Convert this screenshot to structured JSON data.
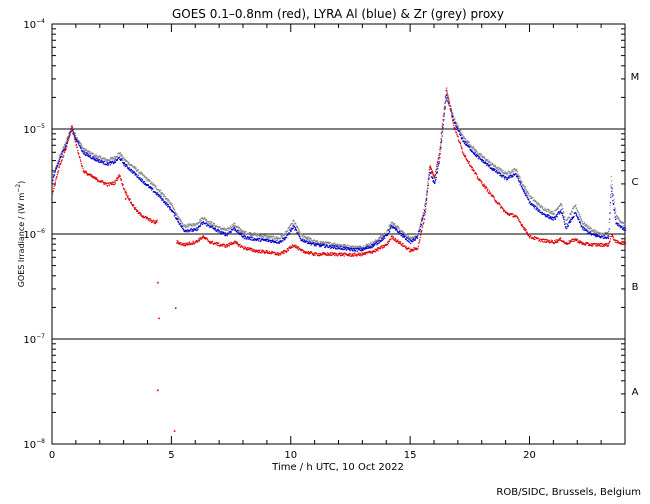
{
  "chart_data": {
    "type": "scatter",
    "title": "GOES 0.1–0.8nm (red), LYRA Al (blue) & Zr (grey) proxy",
    "xlabel": "Time / h UTC, 10 Oct 2022",
    "ylabel_main": "GOES Irradiance / (W m",
    "ylabel_exp": "−2",
    "ylabel_close": ")",
    "xlim": [
      0,
      24
    ],
    "ylim": [
      1e-08,
      0.0001
    ],
    "yscale": "log",
    "x_ticks": [
      {
        "value": 0,
        "label": "0"
      },
      {
        "value": 5,
        "label": "5"
      },
      {
        "value": 10,
        "label": "10"
      },
      {
        "value": 15,
        "label": "15"
      },
      {
        "value": 20,
        "label": "20"
      }
    ],
    "y_ticks": [
      {
        "value": 1e-08,
        "base": "10",
        "exp": "−8"
      },
      {
        "value": 1e-07,
        "base": "10",
        "exp": "−7"
      },
      {
        "value": 1e-06,
        "base": "10",
        "exp": "−6"
      },
      {
        "value": 1e-05,
        "base": "10",
        "exp": "−5"
      },
      {
        "value": 0.0001,
        "base": "10",
        "exp": "−4"
      }
    ],
    "reference_lines": [
      1e-07,
      1e-06,
      1e-05
    ],
    "flare_classes": [
      {
        "label": "A",
        "value": 3.2e-08
      },
      {
        "label": "B",
        "value": 3.2e-07
      },
      {
        "label": "C",
        "value": 3.2e-06
      },
      {
        "label": "M",
        "value": 3.2e-05
      }
    ],
    "series": [
      {
        "name": "Zr proxy",
        "color": "#888888",
        "points": [
          [
            0,
            3.5e-06
          ],
          [
            0.3,
            5.5e-06
          ],
          [
            0.6,
            8e-06
          ],
          [
            0.8,
            1.05e-05
          ],
          [
            1.0,
            8.5e-06
          ],
          [
            1.3,
            6.5e-06
          ],
          [
            1.8,
            5.6e-06
          ],
          [
            2.3,
            5.1e-06
          ],
          [
            2.6,
            5.4e-06
          ],
          [
            2.8,
            6e-06
          ],
          [
            3.0,
            5.2e-06
          ],
          [
            3.5,
            4.2e-06
          ],
          [
            4.0,
            3.3e-06
          ],
          [
            4.5,
            2.6e-06
          ],
          [
            5.0,
            1.9e-06
          ],
          [
            5.3,
            1.4e-06
          ],
          [
            5.5,
            1.2e-06
          ],
          [
            6.0,
            1.25e-06
          ],
          [
            6.3,
            1.45e-06
          ],
          [
            6.6,
            1.3e-06
          ],
          [
            7.0,
            1.15e-06
          ],
          [
            7.3,
            1.1e-06
          ],
          [
            7.6,
            1.25e-06
          ],
          [
            8.0,
            1.05e-06
          ],
          [
            8.5,
            1e-06
          ],
          [
            9.0,
            9.5e-07
          ],
          [
            9.5,
            9.2e-07
          ],
          [
            9.8,
            1.05e-06
          ],
          [
            10.1,
            1.35e-06
          ],
          [
            10.4,
            1e-06
          ],
          [
            11.0,
            8.5e-07
          ],
          [
            12.0,
            8e-07
          ],
          [
            12.5,
            7.6e-07
          ],
          [
            13.0,
            7.6e-07
          ],
          [
            13.5,
            8.5e-07
          ],
          [
            14.0,
            1.05e-06
          ],
          [
            14.2,
            1.3e-06
          ],
          [
            14.5,
            1.15e-06
          ],
          [
            15.0,
            9e-07
          ],
          [
            15.3,
            1e-06
          ],
          [
            15.6,
            1.9e-06
          ],
          [
            15.8,
            4.5e-06
          ],
          [
            16.0,
            3.3e-06
          ],
          [
            16.2,
            5.5e-06
          ],
          [
            16.5,
            2.3e-05
          ],
          [
            16.8,
            1.3e-05
          ],
          [
            17.2,
            8.5e-06
          ],
          [
            17.8,
            6e-06
          ],
          [
            18.5,
            4.5e-06
          ],
          [
            19.0,
            3.8e-06
          ],
          [
            19.4,
            4.2e-06
          ],
          [
            19.7,
            3e-06
          ],
          [
            20.0,
            2.3e-06
          ],
          [
            20.5,
            1.8e-06
          ],
          [
            21.0,
            1.6e-06
          ],
          [
            21.3,
            2e-06
          ],
          [
            21.5,
            1.3e-06
          ],
          [
            21.9,
            1.9e-06
          ],
          [
            22.2,
            1.3e-06
          ],
          [
            22.6,
            1.1e-06
          ],
          [
            23.0,
            1e-06
          ],
          [
            23.3,
            1.05e-06
          ],
          [
            23.4,
            3.5e-06
          ],
          [
            23.6,
            1.5e-06
          ],
          [
            24.0,
            1.2e-06
          ]
        ]
      },
      {
        "name": "LYRA Al proxy",
        "color": "#0000cc",
        "points": [
          [
            0,
            3.3e-06
          ],
          [
            0.3,
            5.2e-06
          ],
          [
            0.6,
            7.5e-06
          ],
          [
            0.8,
            1e-05
          ],
          [
            1.0,
            8e-06
          ],
          [
            1.3,
            6e-06
          ],
          [
            1.8,
            5.2e-06
          ],
          [
            2.3,
            4.7e-06
          ],
          [
            2.6,
            4.9e-06
          ],
          [
            2.8,
            5.4e-06
          ],
          [
            3.0,
            4.7e-06
          ],
          [
            3.5,
            3.7e-06
          ],
          [
            4.0,
            2.9e-06
          ],
          [
            4.5,
            2.3e-06
          ],
          [
            5.0,
            1.7e-06
          ],
          [
            5.3,
            1.3e-06
          ],
          [
            5.5,
            1.1e-06
          ],
          [
            6.0,
            1.1e-06
          ],
          [
            6.3,
            1.3e-06
          ],
          [
            6.6,
            1.2e-06
          ],
          [
            7.0,
            1.05e-06
          ],
          [
            7.3,
            1e-06
          ],
          [
            7.6,
            1.15e-06
          ],
          [
            8.0,
            9.5e-07
          ],
          [
            8.5,
            9e-07
          ],
          [
            9.0,
            8.8e-07
          ],
          [
            9.5,
            8.5e-07
          ],
          [
            9.8,
            9.5e-07
          ],
          [
            10.1,
            1.2e-06
          ],
          [
            10.4,
            9e-07
          ],
          [
            11.0,
            8e-07
          ],
          [
            12.0,
            7.5e-07
          ],
          [
            12.5,
            7.2e-07
          ],
          [
            13.0,
            7.2e-07
          ],
          [
            13.5,
            8e-07
          ],
          [
            14.0,
            9.8e-07
          ],
          [
            14.2,
            1.2e-06
          ],
          [
            14.5,
            1.05e-06
          ],
          [
            15.0,
            8.5e-07
          ],
          [
            15.3,
            9.5e-07
          ],
          [
            15.6,
            1.7e-06
          ],
          [
            15.8,
            4e-06
          ],
          [
            16.0,
            3e-06
          ],
          [
            16.2,
            5e-06
          ],
          [
            16.5,
            2.1e-05
          ],
          [
            16.8,
            1.2e-05
          ],
          [
            17.2,
            7.8e-06
          ],
          [
            17.8,
            5.5e-06
          ],
          [
            18.5,
            4.1e-06
          ],
          [
            19.0,
            3.4e-06
          ],
          [
            19.4,
            3.8e-06
          ],
          [
            19.7,
            2.7e-06
          ],
          [
            20.0,
            2e-06
          ],
          [
            20.5,
            1.6e-06
          ],
          [
            21.0,
            1.4e-06
          ],
          [
            21.3,
            1.7e-06
          ],
          [
            21.5,
            1.15e-06
          ],
          [
            21.9,
            1.6e-06
          ],
          [
            22.2,
            1.15e-06
          ],
          [
            22.6,
            1e-06
          ],
          [
            23.0,
            9.5e-07
          ],
          [
            23.3,
            9.5e-07
          ],
          [
            23.4,
            2.8e-06
          ],
          [
            23.6,
            1.3e-06
          ],
          [
            24.0,
            1.1e-06
          ]
        ]
      },
      {
        "name": "GOES 0.1–0.8nm",
        "color": "#dd0000",
        "points": [
          [
            0,
            2.5e-06
          ],
          [
            0.3,
            4.5e-06
          ],
          [
            0.6,
            7e-06
          ],
          [
            0.8,
            1.1e-05
          ],
          [
            1.0,
            7e-06
          ],
          [
            1.3,
            4e-06
          ],
          [
            1.8,
            3.4e-06
          ],
          [
            2.3,
            3e-06
          ],
          [
            2.6,
            3.1e-06
          ],
          [
            2.8,
            3.7e-06
          ],
          [
            3.0,
            2.7e-06
          ],
          [
            3.3,
            2e-06
          ],
          [
            3.6,
            1.6e-06
          ],
          [
            4.0,
            1.4e-06
          ],
          [
            4.3,
            1.3e-06
          ],
          [
            4.4,
            1.35e-06
          ],
          [
            5.2,
            8.5e-07
          ],
          [
            5.5,
            8e-07
          ],
          [
            6.0,
            8.5e-07
          ],
          [
            6.3,
            9.5e-07
          ],
          [
            6.6,
            8.5e-07
          ],
          [
            7.0,
            8e-07
          ],
          [
            7.3,
            7.8e-07
          ],
          [
            7.6,
            8.5e-07
          ],
          [
            8.0,
            7.5e-07
          ],
          [
            8.5,
            7e-07
          ],
          [
            9.0,
            6.8e-07
          ],
          [
            9.5,
            6.5e-07
          ],
          [
            9.8,
            7e-07
          ],
          [
            10.1,
            8e-07
          ],
          [
            10.4,
            7e-07
          ],
          [
            11.0,
            6.5e-07
          ],
          [
            12.0,
            6.5e-07
          ],
          [
            12.5,
            6.4e-07
          ],
          [
            13.0,
            6.5e-07
          ],
          [
            13.5,
            7e-07
          ],
          [
            14.0,
            8e-07
          ],
          [
            14.2,
            9.5e-07
          ],
          [
            14.5,
            8.5e-07
          ],
          [
            15.0,
            7e-07
          ],
          [
            15.3,
            7.5e-07
          ],
          [
            15.6,
            1.5e-06
          ],
          [
            15.8,
            4.5e-06
          ],
          [
            16.0,
            3.5e-06
          ],
          [
            16.2,
            6e-06
          ],
          [
            16.5,
            2.5e-05
          ],
          [
            16.8,
            1.1e-05
          ],
          [
            17.2,
            6e-06
          ],
          [
            17.8,
            3.5e-06
          ],
          [
            18.5,
            2.2e-06
          ],
          [
            19.0,
            1.6e-06
          ],
          [
            19.4,
            1.5e-06
          ],
          [
            19.7,
            1.2e-06
          ],
          [
            20.0,
            9.5e-07
          ],
          [
            20.5,
            8.8e-07
          ],
          [
            21.0,
            8.5e-07
          ],
          [
            21.3,
            9e-07
          ],
          [
            21.5,
            8.2e-07
          ],
          [
            21.9,
            9e-07
          ],
          [
            22.2,
            8.2e-07
          ],
          [
            22.6,
            8e-07
          ],
          [
            23.0,
            8e-07
          ],
          [
            23.3,
            8e-07
          ],
          [
            23.4,
            1e-06
          ],
          [
            23.6,
            8.5e-07
          ],
          [
            24.0,
            8.3e-07
          ]
        ]
      }
    ],
    "red_outliers": [
      [
        4.4,
        3.5e-07
      ],
      [
        4.45,
        1.6e-07
      ],
      [
        4.4,
        3.3e-08
      ],
      [
        5.15,
        2e-07
      ],
      [
        5.1,
        1.35e-08
      ],
      [
        3.05,
        2.2e-06
      ],
      [
        10.25,
        1.05e-06
      ]
    ]
  },
  "credit": "ROB/SIDC, Brussels, Belgium"
}
